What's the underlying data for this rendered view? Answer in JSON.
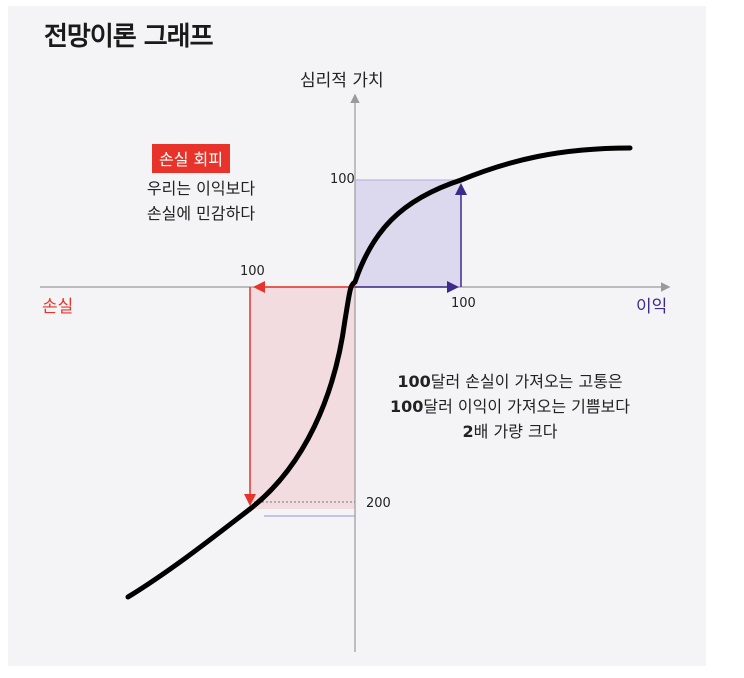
{
  "title": "전망이론 그래프",
  "axes": {
    "y_label": "심리적 가치",
    "x_positive_label": "이익",
    "x_negative_label": "손실",
    "ticks": {
      "y_plus_100": "100",
      "x_plus_100": "100",
      "x_minus_100": "100",
      "y_minus_200": "200"
    }
  },
  "loss_aversion": {
    "badge": "손실 회피",
    "line1": "우리는 이익보다",
    "line2": "손실에 민감하다"
  },
  "comparison": {
    "line1_num": "100",
    "line1_text": "달러 손실이 가져오는 고통은",
    "line2_num": "100",
    "line2_text": "달러 이익이 가져오는 기쁨보다",
    "line3_num": "2",
    "line3_text": "배 가량 크다"
  },
  "colors": {
    "loss": "#e8332a",
    "gain": "#3d2a8a",
    "loss_fill": "#f3dcdf",
    "gain_fill": "#dcd8ee",
    "curve": "#000000",
    "axis": "#9a9a9a"
  }
}
